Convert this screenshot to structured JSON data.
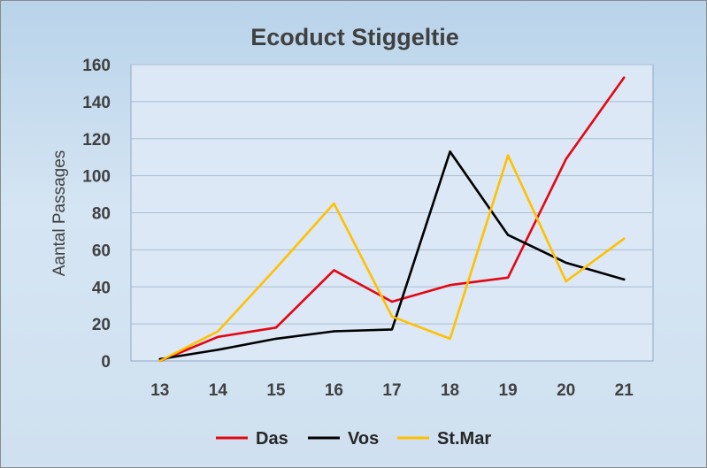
{
  "chart_data": {
    "type": "line",
    "title": "Ecoduct Stiggeltie",
    "xlabel": "",
    "ylabel": "Aantal Passages",
    "x": [
      "13",
      "14",
      "15",
      "16",
      "17",
      "18",
      "19",
      "20",
      "21"
    ],
    "ylim": [
      0,
      160
    ],
    "yticks": [
      0,
      20,
      40,
      60,
      80,
      100,
      120,
      140,
      160
    ],
    "grid": true,
    "legend": "bottom",
    "series": [
      {
        "name": "Das",
        "color": "#e30613",
        "values": [
          0,
          13,
          18,
          49,
          32,
          41,
          45,
          109,
          153
        ]
      },
      {
        "name": "Vos",
        "color": "#000000",
        "values": [
          1,
          6,
          12,
          16,
          17,
          113,
          68,
          53,
          44
        ]
      },
      {
        "name": "St.Mar",
        "color": "#ffc000",
        "values": [
          0,
          16,
          50,
          85,
          24,
          12,
          111,
          43,
          66
        ]
      }
    ]
  }
}
